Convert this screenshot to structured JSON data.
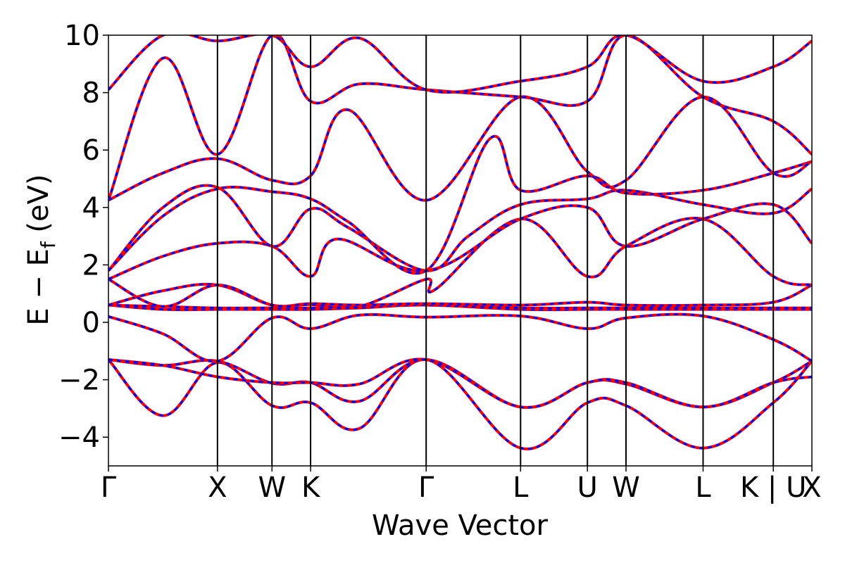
{
  "chart_data": {
    "type": "line",
    "title": "",
    "xlabel": "Wave Vector",
    "ylabel": "E − E",
    "ylabel_sub": "f",
    "ylabel_unit": " (eV)",
    "ylim": [
      -5,
      10
    ],
    "yticks": [
      -4,
      -2,
      0,
      2,
      4,
      6,
      8,
      10
    ],
    "ytick_labels": [
      "−4",
      "−2",
      "0",
      "2",
      "4",
      "6",
      "8",
      "10"
    ],
    "xlim": [
      0,
      6.47
    ],
    "kpoints": [
      {
        "label": "Γ",
        "x": 0.0
      },
      {
        "label": "X",
        "x": 1.0
      },
      {
        "label": "W",
        "x": 1.5
      },
      {
        "label": "K",
        "x": 1.854
      },
      {
        "label": "Γ",
        "x": 2.914
      },
      {
        "label": "L",
        "x": 3.78
      },
      {
        "label": "U",
        "x": 4.393
      },
      {
        "label": "W",
        "x": 4.747
      },
      {
        "label": "L",
        "x": 5.454
      },
      {
        "label": "K | U",
        "x": 6.098
      },
      {
        "label": "X",
        "x": 6.452
      }
    ],
    "grid": false,
    "legend": "none",
    "colors": {
      "series_a": "#ff0000",
      "series_b": "#0000ff",
      "kline": "#000000"
    },
    "series": [
      {
        "band": 1,
        "points": [
          [
            0,
            -1.3
          ],
          [
            0.5,
            -3.25
          ],
          [
            1.0,
            -1.4
          ],
          [
            1.5,
            -2.9
          ],
          [
            1.854,
            -2.8
          ],
          [
            2.3,
            -3.7
          ],
          [
            2.914,
            -1.3
          ],
          [
            3.78,
            -4.38
          ],
          [
            4.393,
            -2.8
          ],
          [
            4.747,
            -2.9
          ],
          [
            5.454,
            -4.38
          ],
          [
            6.098,
            -2.8
          ],
          [
            6.452,
            -1.35
          ]
        ]
      },
      {
        "band": 2,
        "points": [
          [
            0,
            -1.3
          ],
          [
            0.5,
            -1.5
          ],
          [
            1.0,
            -1.35
          ],
          [
            1.5,
            -2.12
          ],
          [
            1.854,
            -2.1
          ],
          [
            2.3,
            -2.75
          ],
          [
            2.914,
            -1.3
          ],
          [
            3.78,
            -2.95
          ],
          [
            4.393,
            -2.1
          ],
          [
            4.747,
            -2.15
          ],
          [
            5.454,
            -2.95
          ],
          [
            6.098,
            -2.1
          ],
          [
            6.452,
            -1.35
          ]
        ]
      },
      {
        "band": 3,
        "points": [
          [
            0,
            -1.3
          ],
          [
            0.5,
            -1.5
          ],
          [
            1.0,
            -1.9
          ],
          [
            1.5,
            -2.1
          ],
          [
            1.854,
            -2.1
          ],
          [
            2.3,
            -2.15
          ],
          [
            2.914,
            -1.3
          ],
          [
            3.78,
            -2.95
          ],
          [
            4.393,
            -2.1
          ],
          [
            4.747,
            -2.1
          ],
          [
            5.454,
            -2.95
          ],
          [
            6.098,
            -2.1
          ],
          [
            6.452,
            -1.9
          ]
        ]
      },
      {
        "band": 4,
        "points": [
          [
            0,
            0.2
          ],
          [
            0.5,
            -0.4
          ],
          [
            1.0,
            -1.35
          ],
          [
            1.5,
            0.15
          ],
          [
            1.854,
            -0.22
          ],
          [
            2.3,
            0.25
          ],
          [
            2.914,
            0.18
          ],
          [
            3.78,
            0.22
          ],
          [
            4.393,
            -0.22
          ],
          [
            4.747,
            0.15
          ],
          [
            5.454,
            0.22
          ],
          [
            6.098,
            -0.6
          ],
          [
            6.452,
            -1.35
          ]
        ]
      },
      {
        "band": 5,
        "points": [
          [
            0,
            0.6
          ],
          [
            0.5,
            0.45
          ],
          [
            1.0,
            0.45
          ],
          [
            1.5,
            0.45
          ],
          [
            1.854,
            0.45
          ],
          [
            2.3,
            0.5
          ],
          [
            2.914,
            0.6
          ],
          [
            3.78,
            0.45
          ],
          [
            4.393,
            0.45
          ],
          [
            4.747,
            0.45
          ],
          [
            5.454,
            0.45
          ],
          [
            6.098,
            0.45
          ],
          [
            6.452,
            0.45
          ]
        ]
      },
      {
        "band": 6,
        "points": [
          [
            0,
            0.6
          ],
          [
            0.5,
            0.55
          ],
          [
            1.0,
            0.5
          ],
          [
            1.5,
            0.5
          ],
          [
            1.854,
            0.5
          ],
          [
            2.3,
            0.55
          ],
          [
            2.914,
            0.6
          ],
          [
            3.78,
            0.5
          ],
          [
            4.393,
            0.5
          ],
          [
            4.747,
            0.5
          ],
          [
            5.454,
            0.5
          ],
          [
            6.098,
            0.5
          ],
          [
            6.452,
            0.5
          ]
        ]
      },
      {
        "band": 7,
        "points": [
          [
            0,
            0.6
          ],
          [
            0.5,
            1.1
          ],
          [
            1.0,
            1.3
          ],
          [
            1.5,
            0.6
          ],
          [
            1.854,
            0.65
          ],
          [
            2.3,
            0.6
          ],
          [
            2.914,
            0.65
          ],
          [
            3.78,
            0.6
          ],
          [
            4.393,
            0.7
          ],
          [
            4.747,
            0.6
          ],
          [
            5.454,
            0.6
          ],
          [
            6.098,
            0.7
          ],
          [
            6.452,
            1.3
          ]
        ]
      },
      {
        "band": 8,
        "points": [
          [
            0,
            1.5
          ],
          [
            0.5,
            0.55
          ],
          [
            1.0,
            1.3
          ],
          [
            1.5,
            0.6
          ],
          [
            1.854,
            0.62
          ],
          [
            2.3,
            0.55
          ],
          [
            2.914,
            1.5
          ],
          [
            3.0,
            1.15
          ],
          [
            3.78,
            3.6
          ],
          [
            4.393,
            1.6
          ],
          [
            4.747,
            2.65
          ],
          [
            5.454,
            3.6
          ],
          [
            6.098,
            1.6
          ],
          [
            6.452,
            1.3
          ]
        ]
      },
      {
        "band": 9,
        "points": [
          [
            0,
            1.5
          ],
          [
            0.5,
            2.3
          ],
          [
            1.0,
            2.75
          ],
          [
            1.5,
            2.65
          ],
          [
            1.854,
            1.6
          ],
          [
            2.1,
            2.9
          ],
          [
            2.914,
            1.8
          ],
          [
            3.78,
            3.6
          ],
          [
            4.393,
            4.0
          ],
          [
            4.747,
            2.65
          ],
          [
            5.454,
            3.6
          ],
          [
            6.098,
            4.1
          ],
          [
            6.452,
            2.75
          ]
        ]
      },
      {
        "band": 10,
        "points": [
          [
            0,
            1.8
          ],
          [
            0.5,
            4.0
          ],
          [
            1.0,
            4.7
          ],
          [
            1.5,
            2.65
          ],
          [
            1.854,
            3.95
          ],
          [
            2.2,
            3.3
          ],
          [
            2.914,
            1.8
          ],
          [
            3.3,
            3.0
          ],
          [
            3.78,
            4.1
          ],
          [
            4.393,
            4.3
          ],
          [
            4.747,
            4.6
          ],
          [
            5.454,
            4.1
          ],
          [
            6.098,
            3.8
          ],
          [
            6.452,
            4.65
          ]
        ]
      },
      {
        "band": 11,
        "points": [
          [
            0,
            1.8
          ],
          [
            0.5,
            3.7
          ],
          [
            1.0,
            4.65
          ],
          [
            1.5,
            4.55
          ],
          [
            1.854,
            4.3
          ],
          [
            2.2,
            3.5
          ],
          [
            2.914,
            1.8
          ],
          [
            3.5,
            6.4
          ],
          [
            3.78,
            4.6
          ],
          [
            4.393,
            5.1
          ],
          [
            4.747,
            4.5
          ],
          [
            5.454,
            4.6
          ],
          [
            6.098,
            5.2
          ],
          [
            6.452,
            5.6
          ]
        ]
      },
      {
        "band": 12,
        "points": [
          [
            0,
            4.25
          ],
          [
            0.5,
            5.2
          ],
          [
            1.0,
            5.7
          ],
          [
            1.5,
            4.95
          ],
          [
            1.854,
            5.1
          ],
          [
            2.2,
            7.4
          ],
          [
            2.914,
            4.25
          ],
          [
            3.78,
            7.85
          ],
          [
            4.393,
            5.25
          ],
          [
            4.747,
            4.95
          ],
          [
            5.454,
            7.85
          ],
          [
            6.098,
            5.2
          ],
          [
            6.452,
            5.6
          ]
        ]
      },
      {
        "band": 13,
        "points": [
          [
            0,
            4.25
          ],
          [
            0.5,
            9.2
          ],
          [
            1.0,
            5.85
          ],
          [
            1.5,
            10.0
          ],
          [
            1.854,
            7.7
          ],
          [
            2.3,
            8.3
          ],
          [
            2.914,
            8.1
          ],
          [
            3.78,
            7.85
          ],
          [
            4.393,
            7.7
          ],
          [
            4.747,
            10.0
          ],
          [
            5.454,
            7.85
          ],
          [
            6.098,
            7.0
          ],
          [
            6.452,
            5.85
          ]
        ]
      },
      {
        "band": 14,
        "points": [
          [
            0,
            8.1
          ],
          [
            0.5,
            10.0
          ],
          [
            1.0,
            9.8
          ],
          [
            1.5,
            10.0
          ],
          [
            1.854,
            8.9
          ],
          [
            2.3,
            9.9
          ],
          [
            2.914,
            8.1
          ],
          [
            3.78,
            8.4
          ],
          [
            4.393,
            8.9
          ],
          [
            4.747,
            10.0
          ],
          [
            5.454,
            8.4
          ],
          [
            6.098,
            8.9
          ],
          [
            6.452,
            9.8
          ]
        ]
      }
    ]
  }
}
